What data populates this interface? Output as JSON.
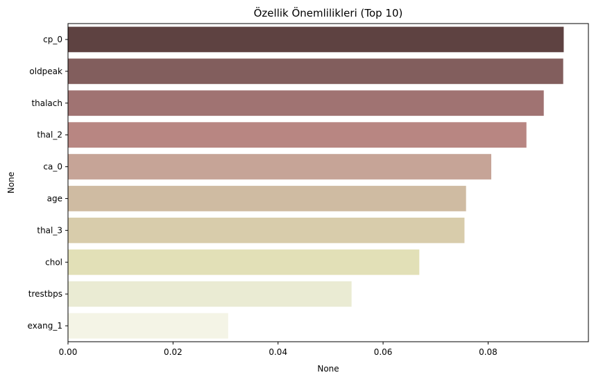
{
  "chart_data": {
    "type": "bar",
    "orientation": "horizontal",
    "title": "Özellik Önemlilikleri (Top 10)",
    "xlabel": "None",
    "ylabel": "None",
    "categories": [
      "cp_0",
      "oldpeak",
      "thalach",
      "thal_2",
      "ca_0",
      "age",
      "thal_3",
      "chol",
      "trestbps",
      "exang_1"
    ],
    "values": [
      0.0944,
      0.0943,
      0.0906,
      0.0873,
      0.0806,
      0.0758,
      0.0755,
      0.0669,
      0.054,
      0.0305
    ],
    "colors": [
      "#5e4241",
      "#825e5d",
      "#a07372",
      "#b88682",
      "#c6a497",
      "#cfbba2",
      "#d8ccab",
      "#e2e0b7",
      "#eaebd3",
      "#f4f4e6"
    ],
    "xlim": [
      0,
      0.0991
    ],
    "xticks": [
      0.0,
      0.02,
      0.04,
      0.06,
      0.08
    ],
    "xtick_labels": [
      "0.00",
      "0.02",
      "0.04",
      "0.06",
      "0.08"
    ],
    "grid": false,
    "legend": "none"
  }
}
